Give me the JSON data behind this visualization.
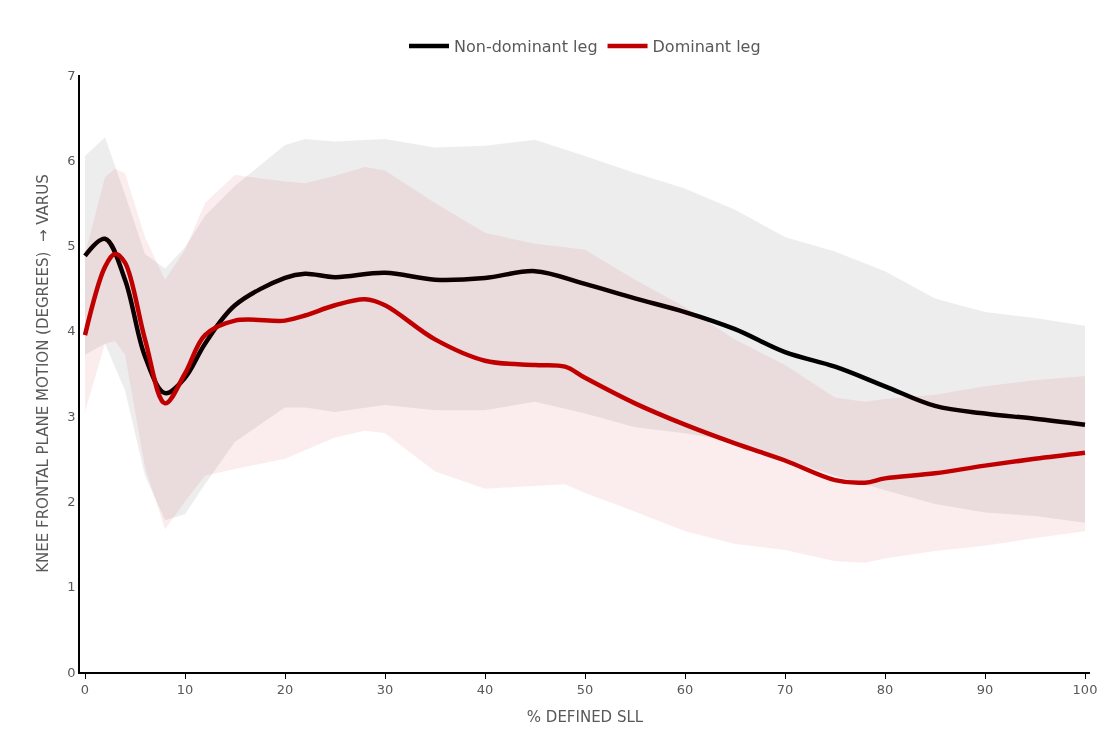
{
  "chart_data": {
    "type": "line",
    "xlabel": "% DEFINED SLL",
    "ylabel": "KNEE FRONTAL PLANE MOTION (DEGREES)  → VARUS",
    "xlim": [
      -0.5,
      100.5
    ],
    "xticks": [
      0,
      10,
      20,
      30,
      40,
      50,
      60,
      70,
      80,
      90,
      100
    ],
    "ylim": [
      0,
      7
    ],
    "yticks": [
      0,
      1,
      2,
      3,
      4,
      5,
      6,
      7
    ],
    "grid": false,
    "legend": "top",
    "line_style": "solid",
    "marker": "none",
    "series": [
      {
        "name": "Non-dominant leg",
        "color": "#000000",
        "x": [
          0,
          2,
          4,
          6,
          8,
          10,
          12,
          15,
          20,
          22,
          25,
          30,
          35,
          40,
          45,
          50,
          55,
          60,
          65,
          70,
          75,
          80,
          85,
          90,
          95,
          100
        ],
        "values": [
          4.88,
          5.08,
          4.6,
          3.7,
          3.27,
          3.45,
          3.85,
          4.3,
          4.62,
          4.67,
          4.63,
          4.68,
          4.6,
          4.62,
          4.7,
          4.55,
          4.38,
          4.22,
          4.02,
          3.75,
          3.58,
          3.35,
          3.12,
          3.03,
          2.97,
          2.9
        ],
        "upper": [
          6.05,
          6.27,
          5.6,
          4.9,
          4.73,
          4.98,
          5.35,
          5.7,
          6.18,
          6.25,
          6.22,
          6.25,
          6.15,
          6.17,
          6.24,
          6.05,
          5.85,
          5.67,
          5.42,
          5.1,
          4.93,
          4.7,
          4.38,
          4.22,
          4.15,
          4.06
        ],
        "lower": [
          3.72,
          3.85,
          3.3,
          2.3,
          1.78,
          1.85,
          2.2,
          2.7,
          3.1,
          3.1,
          3.05,
          3.13,
          3.07,
          3.07,
          3.17,
          3.03,
          2.87,
          2.8,
          2.7,
          2.5,
          2.3,
          2.13,
          1.97,
          1.87,
          1.83,
          1.75
        ]
      },
      {
        "name": "Dominant leg",
        "color": "#c00000",
        "x": [
          0,
          2,
          3,
          4,
          6,
          8,
          10,
          12,
          15,
          20,
          22,
          25,
          28,
          30,
          35,
          40,
          45,
          48,
          50,
          55,
          60,
          65,
          70,
          75,
          78,
          80,
          85,
          90,
          95,
          100
        ],
        "values": [
          3.95,
          4.75,
          4.9,
          4.8,
          3.9,
          3.15,
          3.5,
          3.95,
          4.12,
          4.12,
          4.18,
          4.3,
          4.37,
          4.3,
          3.9,
          3.65,
          3.6,
          3.58,
          3.45,
          3.15,
          2.9,
          2.68,
          2.48,
          2.25,
          2.22,
          2.27,
          2.33,
          2.42,
          2.5,
          2.57
        ],
        "upper": [
          4.9,
          5.8,
          5.9,
          5.85,
          5.1,
          4.6,
          4.95,
          5.5,
          5.83,
          5.75,
          5.73,
          5.82,
          5.92,
          5.88,
          5.5,
          5.15,
          5.02,
          4.98,
          4.95,
          4.6,
          4.28,
          3.9,
          3.6,
          3.22,
          3.17,
          3.2,
          3.25,
          3.35,
          3.42,
          3.47
        ],
        "lower": [
          3.05,
          3.85,
          3.88,
          3.72,
          2.4,
          1.67,
          2.0,
          2.3,
          2.38,
          2.5,
          2.6,
          2.75,
          2.83,
          2.8,
          2.35,
          2.15,
          2.18,
          2.2,
          2.1,
          1.88,
          1.65,
          1.5,
          1.43,
          1.3,
          1.28,
          1.33,
          1.42,
          1.48,
          1.57,
          1.65
        ]
      }
    ]
  }
}
